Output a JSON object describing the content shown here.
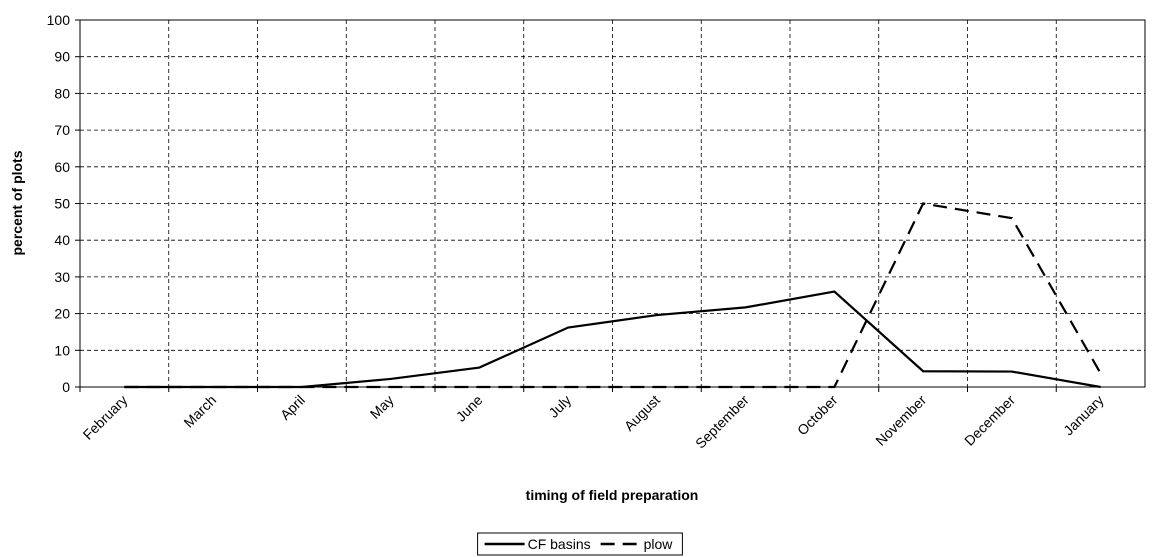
{
  "chart_data": {
    "type": "line",
    "xlabel": "timing of field preparation",
    "ylabel": "percent of plots",
    "categories": [
      "February",
      "March",
      "April",
      "May",
      "June",
      "July",
      "August",
      "September",
      "October",
      "November",
      "December",
      "January"
    ],
    "series": [
      {
        "name": "CF basins",
        "color": "#000000",
        "dash": "solid",
        "values": [
          0,
          0,
          0,
          2.2,
          5.3,
          16.2,
          19.6,
          21.7,
          26,
          4.3,
          4.2,
          0
        ]
      },
      {
        "name": "plow",
        "color": "#000000",
        "dash": "dashed",
        "values": [
          0,
          0,
          0,
          0,
          0,
          0,
          0,
          0,
          0,
          50,
          46,
          3.7
        ]
      }
    ],
    "ylim": [
      0,
      100
    ],
    "yticks": [
      0,
      10,
      20,
      30,
      40,
      50,
      60,
      70,
      80,
      90,
      100
    ],
    "grid": true,
    "legend": "bottom"
  }
}
